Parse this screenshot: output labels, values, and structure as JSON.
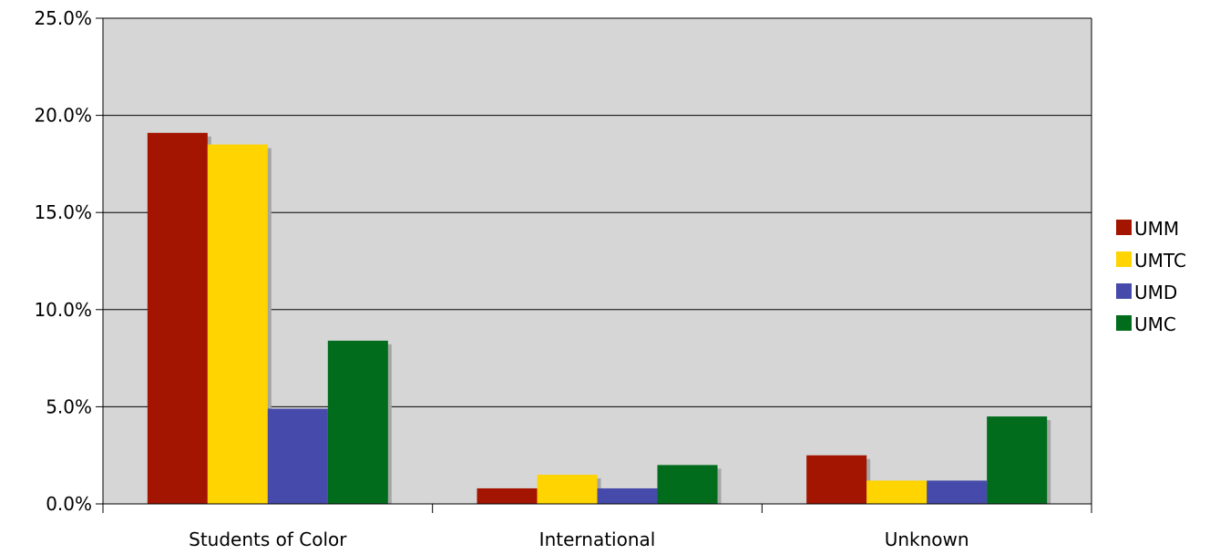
{
  "chart_data": {
    "type": "bar",
    "categories": [
      "Students of Color",
      "International",
      "Unknown"
    ],
    "series": [
      {
        "name": "UMM",
        "values": [
          19.1,
          0.8,
          2.5
        ]
      },
      {
        "name": "UMTC",
        "values": [
          18.5,
          1.5,
          1.2
        ]
      },
      {
        "name": "UMD",
        "values": [
          4.9,
          0.8,
          1.2
        ]
      },
      {
        "name": "UMC",
        "values": [
          8.4,
          2.0,
          4.5
        ]
      }
    ],
    "ylim": [
      0,
      25
    ],
    "yticks": [
      "0.0%",
      "5.0%",
      "10.0%",
      "15.0%",
      "20.0%",
      "25.0%"
    ],
    "grid": true,
    "legend_position": "right",
    "colors": {
      "UMM": "#a31500",
      "UMTC": "#ffd400",
      "UMD": "#464bab",
      "UMC": "#016d1c",
      "plot_background": "#d6d6d6",
      "shadow": "#a6a6a6"
    }
  }
}
